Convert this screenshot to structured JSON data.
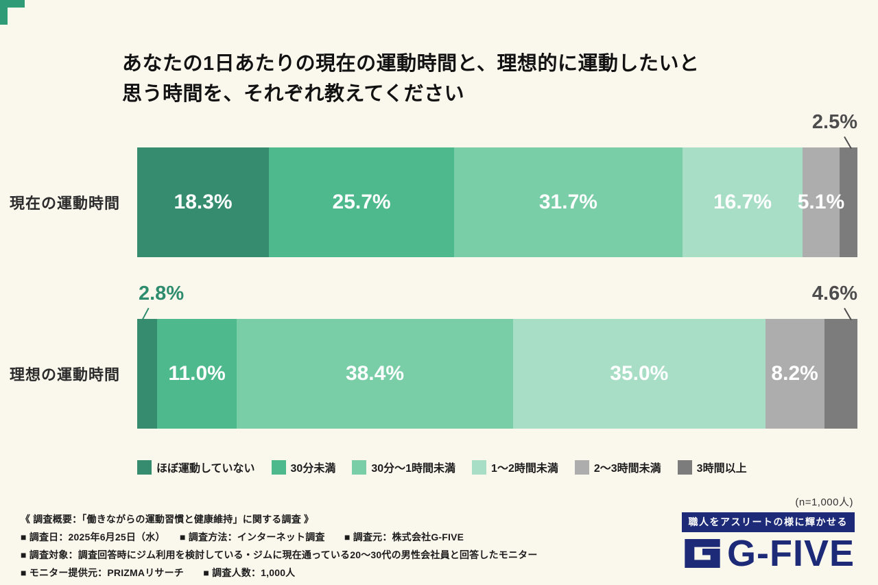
{
  "title_lines": [
    "あなたの1日あたりの現在の運動時間と、理想的に運動したいと",
    "思う時間を、それぞれ教えてください"
  ],
  "chart_data": {
    "type": "bar",
    "orientation": "horizontal-stacked",
    "title": "あなたの1日あたりの現在の運動時間と、理想的に運動したいと思う時間を、それぞれ教えてください",
    "categories": [
      "現在の運動時間",
      "理想の運動時間"
    ],
    "series": [
      {
        "name": "ほぼ運動していない",
        "color": "#368C6F",
        "values": [
          18.3,
          2.8
        ]
      },
      {
        "name": "30分未満",
        "color": "#4EB98D",
        "values": [
          25.7,
          11.0
        ]
      },
      {
        "name": "30分〜1時間未満",
        "color": "#79CDA7",
        "values": [
          31.7,
          38.4
        ]
      },
      {
        "name": "1〜2時間未満",
        "color": "#A9DEC6",
        "values": [
          16.7,
          35.0
        ]
      },
      {
        "name": "2〜3時間未満",
        "color": "#ADADAD",
        "values": [
          5.1,
          8.2
        ]
      },
      {
        "name": "3時間以上",
        "color": "#7C7C7C",
        "values": [
          2.5,
          4.6
        ]
      }
    ],
    "value_suffix": "%",
    "xlim": [
      0,
      100
    ],
    "grid": false,
    "legend_position": "bottom",
    "callouts": [
      {
        "row": 0,
        "series": 5,
        "side": "right",
        "color": "#4D4D4D"
      },
      {
        "row": 1,
        "series": 0,
        "side": "left",
        "color": "#2E8C6E"
      },
      {
        "row": 1,
        "series": 5,
        "side": "right",
        "color": "#4D4D4D"
      }
    ]
  },
  "sample_note": "(n=1,000人)",
  "footer_lines": [
    "《 調査概要：「働きながらの運動習慣と健康維持」に関する調査 》",
    "■ 調査日：2025年6月25日（水）　　■ 調査方法：インターネット調査　　■ 調査元：株式会社G-FIVE",
    "■ 調査対象：調査回答時にジム利用を検討している・ジムに現在通っている20〜30代の男性会社員と回答したモニター",
    "■ モニター提供元：PRIZMAリサーチ　　■ 調査人数：1,000人"
  ],
  "logo": {
    "tagline": "職人をアスリートの様に輝かせる",
    "brand": "G-FIVE",
    "color": "#1C2A77"
  },
  "colors": {
    "background": "#FAF7ED",
    "accent_green": "#2F9C77"
  }
}
